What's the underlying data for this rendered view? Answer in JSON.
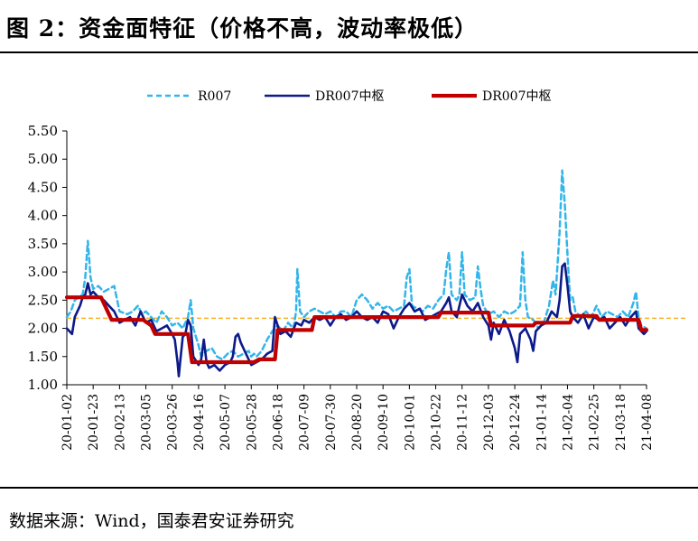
{
  "title": "图 2：资金面特征（价格不高，波动率极低）",
  "source": "数据来源：Wind，国泰君安证券研究",
  "chart_data": {
    "type": "line",
    "y_axis": {
      "min": 1.0,
      "max": 5.5,
      "step": 0.5,
      "tick_labels": [
        "1.00",
        "1.50",
        "2.00",
        "2.50",
        "3.00",
        "3.50",
        "4.00",
        "4.50",
        "5.00",
        "5.50"
      ]
    },
    "x_tick_labels": [
      "20-01-02",
      "20-01-23",
      "20-02-13",
      "20-03-05",
      "20-03-26",
      "20-04-16",
      "20-05-07",
      "20-05-28",
      "20-06-18",
      "20-07-09",
      "20-07-30",
      "20-08-20",
      "20-09-10",
      "20-10-01",
      "20-10-22",
      "20-11-12",
      "20-12-03",
      "20-12-24",
      "21-01-14",
      "21-02-04",
      "21-02-25",
      "21-03-18",
      "21-04-08"
    ],
    "reference_line": {
      "value": 2.18,
      "color": "#f5b326",
      "style": "dashed"
    },
    "legend_position": "top",
    "series": [
      {
        "name": "R007",
        "color": "#33b5ea",
        "style": "dashed",
        "points": [
          [
            0,
            2.2
          ],
          [
            0.15,
            2.3
          ],
          [
            0.3,
            2.5
          ],
          [
            0.45,
            2.55
          ],
          [
            0.6,
            2.6
          ],
          [
            0.7,
            2.9
          ],
          [
            0.8,
            3.55
          ],
          [
            0.9,
            2.9
          ],
          [
            1.0,
            2.7
          ],
          [
            1.2,
            2.75
          ],
          [
            1.4,
            2.65
          ],
          [
            1.6,
            2.7
          ],
          [
            1.8,
            2.75
          ],
          [
            2.0,
            2.3
          ],
          [
            2.3,
            2.25
          ],
          [
            2.5,
            2.3
          ],
          [
            2.7,
            2.4
          ],
          [
            2.85,
            2.25
          ],
          [
            3.0,
            2.3
          ],
          [
            3.2,
            2.2
          ],
          [
            3.4,
            2.1
          ],
          [
            3.6,
            2.3
          ],
          [
            3.8,
            2.2
          ],
          [
            4.0,
            2.05
          ],
          [
            4.2,
            2.1
          ],
          [
            4.4,
            2.0
          ],
          [
            4.6,
            2.2
          ],
          [
            4.7,
            2.5
          ],
          [
            4.8,
            2.0
          ],
          [
            5.0,
            1.7
          ],
          [
            5.1,
            1.5
          ],
          [
            5.3,
            1.6
          ],
          [
            5.5,
            1.65
          ],
          [
            5.7,
            1.5
          ],
          [
            5.9,
            1.45
          ],
          [
            6.1,
            1.55
          ],
          [
            6.3,
            1.6
          ],
          [
            6.5,
            1.5
          ],
          [
            6.7,
            1.55
          ],
          [
            6.9,
            1.6
          ],
          [
            7.0,
            1.5
          ],
          [
            7.1,
            1.55
          ],
          [
            7.2,
            1.5
          ],
          [
            7.4,
            1.6
          ],
          [
            7.6,
            1.8
          ],
          [
            7.8,
            1.95
          ],
          [
            8.0,
            2.05
          ],
          [
            8.2,
            1.95
          ],
          [
            8.4,
            2.1
          ],
          [
            8.6,
            2.0
          ],
          [
            8.7,
            2.3
          ],
          [
            8.75,
            3.05
          ],
          [
            8.85,
            2.3
          ],
          [
            9.0,
            2.2
          ],
          [
            9.2,
            2.3
          ],
          [
            9.4,
            2.35
          ],
          [
            9.6,
            2.3
          ],
          [
            9.8,
            2.25
          ],
          [
            10.0,
            2.3
          ],
          [
            10.2,
            2.2
          ],
          [
            10.4,
            2.3
          ],
          [
            10.6,
            2.3
          ],
          [
            10.8,
            2.2
          ],
          [
            11.0,
            2.5
          ],
          [
            11.2,
            2.6
          ],
          [
            11.4,
            2.5
          ],
          [
            11.6,
            2.35
          ],
          [
            11.8,
            2.45
          ],
          [
            12.0,
            2.35
          ],
          [
            12.2,
            2.4
          ],
          [
            12.4,
            2.3
          ],
          [
            12.6,
            2.35
          ],
          [
            12.8,
            2.4
          ],
          [
            12.9,
            2.9
          ],
          [
            13.0,
            3.05
          ],
          [
            13.1,
            2.4
          ],
          [
            13.3,
            2.35
          ],
          [
            13.5,
            2.3
          ],
          [
            13.7,
            2.4
          ],
          [
            13.9,
            2.35
          ],
          [
            14.1,
            2.5
          ],
          [
            14.3,
            2.6
          ],
          [
            14.4,
            3.05
          ],
          [
            14.5,
            3.35
          ],
          [
            14.6,
            2.6
          ],
          [
            14.8,
            2.5
          ],
          [
            14.9,
            2.6
          ],
          [
            15.0,
            3.35
          ],
          [
            15.1,
            2.6
          ],
          [
            15.3,
            2.5
          ],
          [
            15.5,
            2.55
          ],
          [
            15.6,
            3.1
          ],
          [
            15.7,
            2.7
          ],
          [
            15.8,
            2.4
          ],
          [
            16.0,
            2.25
          ],
          [
            16.2,
            2.3
          ],
          [
            16.4,
            2.2
          ],
          [
            16.6,
            2.3
          ],
          [
            16.8,
            2.25
          ],
          [
            17.0,
            2.3
          ],
          [
            17.2,
            2.4
          ],
          [
            17.3,
            3.35
          ],
          [
            17.4,
            2.5
          ],
          [
            17.5,
            2.2
          ],
          [
            17.7,
            2.15
          ],
          [
            17.9,
            2.0
          ],
          [
            18.1,
            2.1
          ],
          [
            18.3,
            2.4
          ],
          [
            18.45,
            2.85
          ],
          [
            18.55,
            2.6
          ],
          [
            18.7,
            3.7
          ],
          [
            18.8,
            4.8
          ],
          [
            18.9,
            4.2
          ],
          [
            19.0,
            3.3
          ],
          [
            19.1,
            2.5
          ],
          [
            19.2,
            2.55
          ],
          [
            19.3,
            2.3
          ],
          [
            19.5,
            2.2
          ],
          [
            19.7,
            2.3
          ],
          [
            19.9,
            2.2
          ],
          [
            20.1,
            2.4
          ],
          [
            20.3,
            2.2
          ],
          [
            20.5,
            2.3
          ],
          [
            20.7,
            2.25
          ],
          [
            20.9,
            2.2
          ],
          [
            21.1,
            2.3
          ],
          [
            21.3,
            2.2
          ],
          [
            21.5,
            2.45
          ],
          [
            21.6,
            2.65
          ],
          [
            21.7,
            2.2
          ],
          [
            21.8,
            2.05
          ],
          [
            22.0,
            2.0
          ]
        ]
      },
      {
        "name": "DR007中枢",
        "color": "#0d1a8a",
        "style": "solid",
        "points": [
          [
            0,
            2.0
          ],
          [
            0.1,
            1.95
          ],
          [
            0.2,
            1.9
          ],
          [
            0.3,
            2.2
          ],
          [
            0.4,
            2.3
          ],
          [
            0.5,
            2.4
          ],
          [
            0.6,
            2.55
          ],
          [
            0.7,
            2.6
          ],
          [
            0.8,
            2.8
          ],
          [
            0.9,
            2.6
          ],
          [
            1.0,
            2.65
          ],
          [
            1.2,
            2.55
          ],
          [
            1.4,
            2.5
          ],
          [
            1.6,
            2.4
          ],
          [
            1.8,
            2.3
          ],
          [
            2.0,
            2.1
          ],
          [
            2.2,
            2.15
          ],
          [
            2.4,
            2.2
          ],
          [
            2.6,
            2.05
          ],
          [
            2.8,
            2.3
          ],
          [
            3.0,
            2.1
          ],
          [
            3.2,
            2.15
          ],
          [
            3.4,
            1.95
          ],
          [
            3.6,
            2.0
          ],
          [
            3.8,
            2.05
          ],
          [
            4.0,
            1.9
          ],
          [
            4.1,
            1.8
          ],
          [
            4.2,
            1.4
          ],
          [
            4.25,
            1.15
          ],
          [
            4.3,
            1.4
          ],
          [
            4.4,
            1.85
          ],
          [
            4.5,
            1.9
          ],
          [
            4.6,
            2.15
          ],
          [
            4.7,
            2.05
          ],
          [
            4.8,
            1.5
          ],
          [
            5.0,
            1.35
          ],
          [
            5.1,
            1.45
          ],
          [
            5.2,
            1.8
          ],
          [
            5.3,
            1.4
          ],
          [
            5.4,
            1.3
          ],
          [
            5.6,
            1.35
          ],
          [
            5.8,
            1.25
          ],
          [
            6.0,
            1.35
          ],
          [
            6.2,
            1.4
          ],
          [
            6.3,
            1.5
          ],
          [
            6.4,
            1.85
          ],
          [
            6.5,
            1.9
          ],
          [
            6.6,
            1.75
          ],
          [
            6.8,
            1.55
          ],
          [
            7.0,
            1.35
          ],
          [
            7.2,
            1.4
          ],
          [
            7.4,
            1.45
          ],
          [
            7.6,
            1.55
          ],
          [
            7.8,
            1.6
          ],
          [
            7.9,
            2.2
          ],
          [
            8.0,
            2.05
          ],
          [
            8.1,
            1.9
          ],
          [
            8.3,
            1.95
          ],
          [
            8.5,
            1.85
          ],
          [
            8.7,
            2.1
          ],
          [
            8.9,
            2.05
          ],
          [
            9.0,
            2.15
          ],
          [
            9.2,
            2.1
          ],
          [
            9.4,
            2.2
          ],
          [
            9.6,
            2.15
          ],
          [
            9.8,
            2.2
          ],
          [
            10.0,
            2.05
          ],
          [
            10.2,
            2.2
          ],
          [
            10.4,
            2.25
          ],
          [
            10.6,
            2.15
          ],
          [
            10.8,
            2.2
          ],
          [
            11.0,
            2.3
          ],
          [
            11.2,
            2.2
          ],
          [
            11.4,
            2.15
          ],
          [
            11.6,
            2.2
          ],
          [
            11.8,
            2.1
          ],
          [
            12.0,
            2.3
          ],
          [
            12.2,
            2.25
          ],
          [
            12.4,
            2.0
          ],
          [
            12.6,
            2.2
          ],
          [
            12.8,
            2.35
          ],
          [
            13.0,
            2.45
          ],
          [
            13.2,
            2.3
          ],
          [
            13.4,
            2.35
          ],
          [
            13.6,
            2.15
          ],
          [
            13.8,
            2.2
          ],
          [
            14.0,
            2.25
          ],
          [
            14.2,
            2.3
          ],
          [
            14.4,
            2.45
          ],
          [
            14.5,
            2.55
          ],
          [
            14.6,
            2.3
          ],
          [
            14.8,
            2.2
          ],
          [
            15.0,
            2.6
          ],
          [
            15.2,
            2.4
          ],
          [
            15.4,
            2.3
          ],
          [
            15.6,
            2.45
          ],
          [
            15.8,
            2.2
          ],
          [
            16.0,
            2.05
          ],
          [
            16.1,
            1.8
          ],
          [
            16.2,
            2.1
          ],
          [
            16.4,
            1.9
          ],
          [
            16.6,
            2.15
          ],
          [
            16.8,
            1.95
          ],
          [
            17.0,
            1.65
          ],
          [
            17.1,
            1.4
          ],
          [
            17.2,
            1.9
          ],
          [
            17.4,
            2.0
          ],
          [
            17.6,
            1.8
          ],
          [
            17.7,
            1.6
          ],
          [
            17.8,
            1.95
          ],
          [
            18.0,
            2.05
          ],
          [
            18.2,
            2.1
          ],
          [
            18.4,
            2.3
          ],
          [
            18.6,
            2.2
          ],
          [
            18.7,
            2.5
          ],
          [
            18.8,
            3.1
          ],
          [
            18.9,
            3.15
          ],
          [
            19.0,
            2.75
          ],
          [
            19.1,
            2.3
          ],
          [
            19.2,
            2.2
          ],
          [
            19.4,
            2.1
          ],
          [
            19.6,
            2.25
          ],
          [
            19.8,
            2.0
          ],
          [
            20.0,
            2.2
          ],
          [
            20.2,
            2.15
          ],
          [
            20.4,
            2.2
          ],
          [
            20.6,
            2.0
          ],
          [
            20.8,
            2.1
          ],
          [
            21.0,
            2.2
          ],
          [
            21.2,
            2.05
          ],
          [
            21.4,
            2.2
          ],
          [
            21.6,
            2.3
          ],
          [
            21.7,
            2.0
          ],
          [
            21.9,
            1.9
          ],
          [
            22.0,
            1.95
          ]
        ]
      },
      {
        "name": "DR007中枢",
        "color": "#c00000",
        "style": "solid",
        "points": [
          [
            0,
            2.55
          ],
          [
            1.3,
            2.55
          ],
          [
            1.7,
            2.15
          ],
          [
            2.9,
            2.15
          ],
          [
            3.2,
            2.05
          ],
          [
            3.35,
            1.9
          ],
          [
            4.6,
            1.9
          ],
          [
            4.75,
            1.4
          ],
          [
            7.1,
            1.4
          ],
          [
            7.3,
            1.45
          ],
          [
            7.9,
            1.45
          ],
          [
            8.0,
            1.97
          ],
          [
            9.3,
            1.97
          ],
          [
            9.4,
            2.2
          ],
          [
            14.1,
            2.2
          ],
          [
            14.2,
            2.28
          ],
          [
            16.0,
            2.28
          ],
          [
            16.1,
            2.05
          ],
          [
            17.7,
            2.05
          ],
          [
            17.8,
            2.1
          ],
          [
            19.1,
            2.1
          ],
          [
            19.2,
            2.22
          ],
          [
            20.1,
            2.22
          ],
          [
            20.2,
            2.15
          ],
          [
            21.7,
            2.15
          ],
          [
            21.8,
            1.97
          ],
          [
            22.0,
            1.97
          ]
        ]
      }
    ]
  }
}
